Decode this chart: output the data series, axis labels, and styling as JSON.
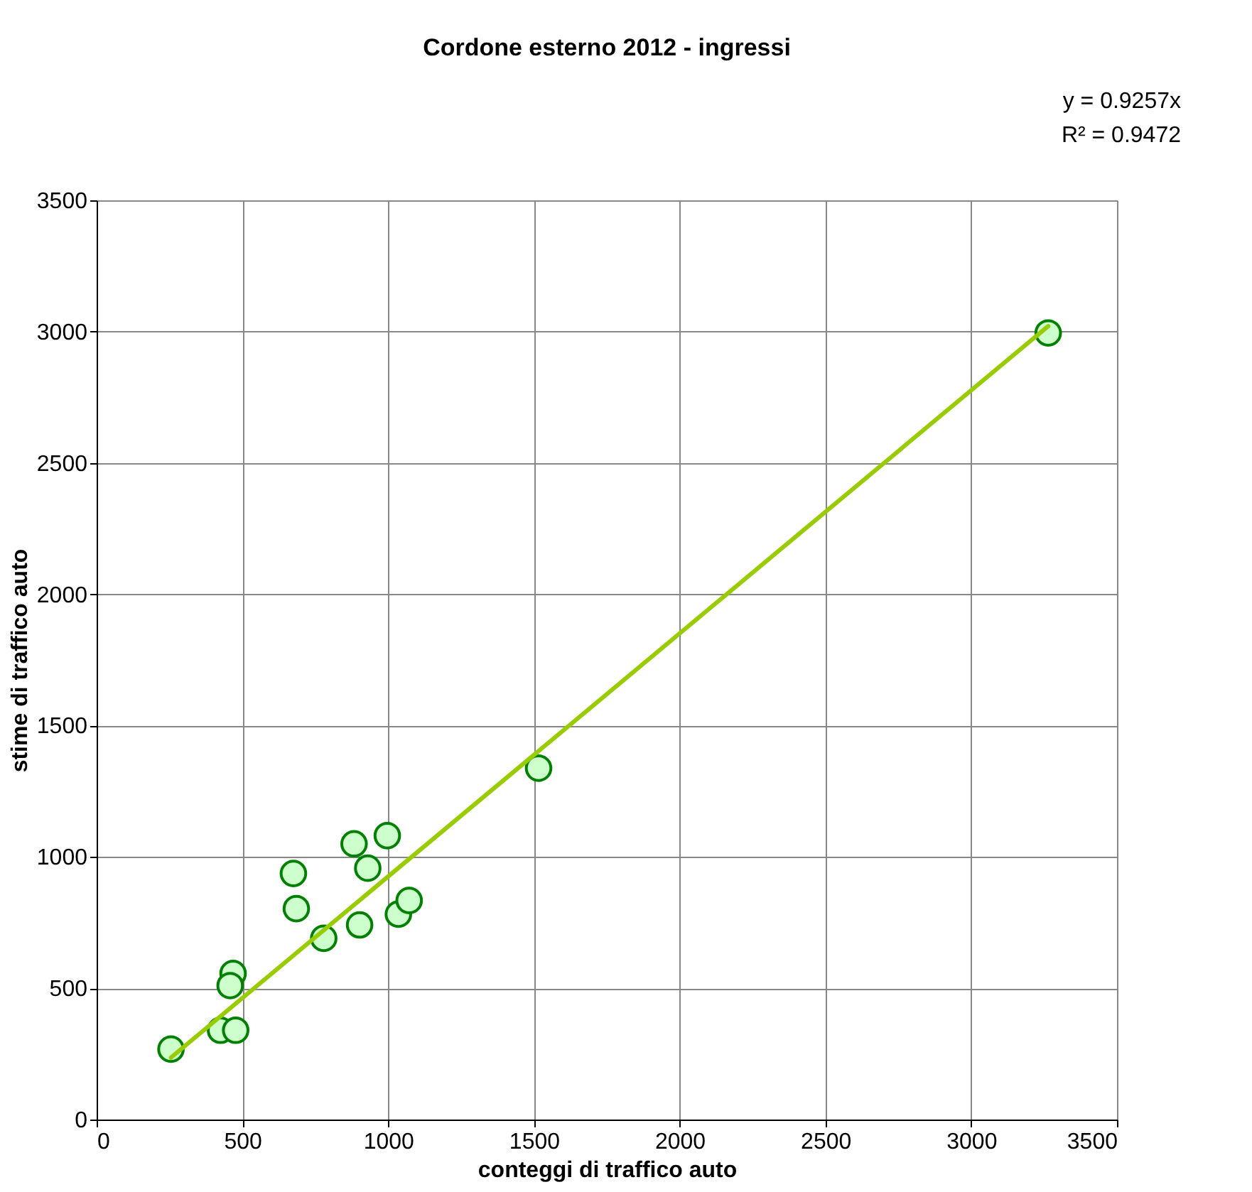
{
  "chart_data": {
    "type": "scatter",
    "title": "Cordone esterno 2012 - ingressi",
    "xlabel": "conteggi di traffico auto",
    "ylabel": "stime di traffico auto",
    "annotations": [
      "y = 0.9257x",
      "R² = 0.9472"
    ],
    "xlim": [
      0,
      3500
    ],
    "xticks": [
      0,
      500,
      1000,
      1500,
      2000,
      2500,
      3000,
      3500
    ],
    "ylim": [
      0,
      3500
    ],
    "yticks": [
      0,
      500,
      1000,
      1500,
      2000,
      2500,
      3000,
      3500
    ],
    "grid": true,
    "series": [
      {
        "color": "#ccffcc",
        "marker": "circle",
        "x": [
          255,
          425,
          477,
          468,
          458,
          675,
          685,
          779,
          883,
          902,
          930,
          997,
          1035,
          1072,
          1516,
          3264
        ],
        "values": [
          268,
          340,
          340,
          556,
          510,
          937,
          803,
          690,
          1050,
          741,
          957,
          1081,
          782,
          834,
          1338,
          2995
        ]
      },
      {
        "type": "line",
        "marker": "none",
        "line_style": "solid",
        "color": "#99cc00",
        "x": [
          255,
          3264
        ],
        "values": [
          236,
          3021
        ]
      }
    ]
  }
}
